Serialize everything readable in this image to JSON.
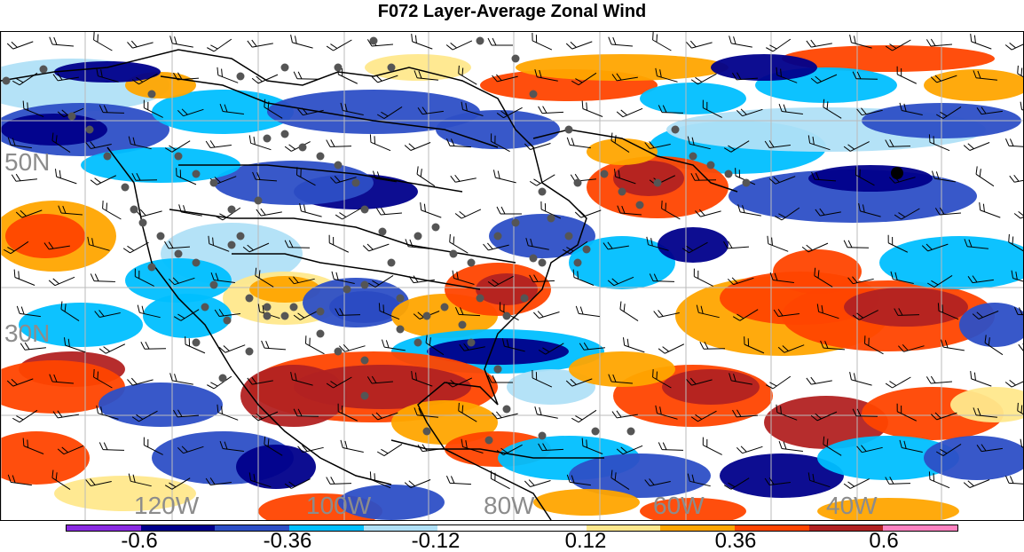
{
  "title": "F072 Layer-Average Zonal Wind",
  "lat_labels": [
    "50N",
    "30N"
  ],
  "lon_labels": [
    "120W",
    "100W",
    "80W",
    "60W",
    "40W"
  ],
  "colorbar": {
    "colors": [
      "#8a2be2",
      "#00008b",
      "#2d4fc6",
      "#00bfff",
      "#b0e0f7",
      "#ffffff",
      "#ffffff",
      "#ffe88c",
      "#ffa500",
      "#ff4500",
      "#b22222",
      "#ff82c0"
    ],
    "tick_labels": [
      "-0.6",
      "-0.36",
      "-0.12",
      "0.12",
      "0.36",
      "0.6"
    ]
  },
  "field": {
    "blue_zones": "continental troughs, Canadian arctic, western Atlantic, subtropics",
    "red_zones": "Mexico/Gulf ridge, eastern Canada, central Atlantic, southeastern US"
  },
  "stations_marker": "gray-dots",
  "barbs": "black-wind-barbs"
}
